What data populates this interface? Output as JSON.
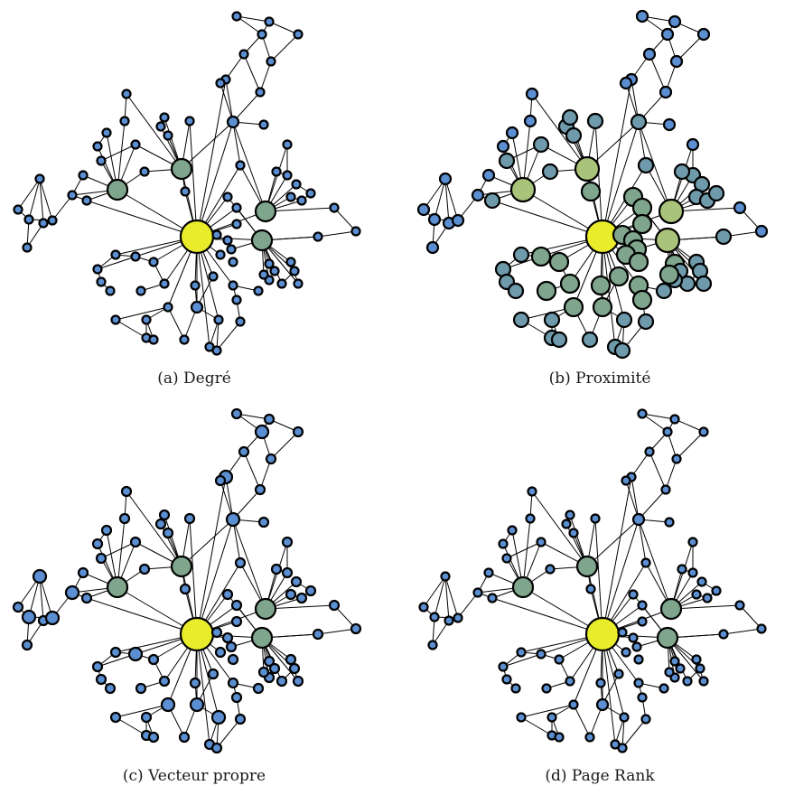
{
  "panels": [
    {
      "id": "a",
      "caption": "(a) Degré"
    },
    {
      "id": "b",
      "caption": "(b) Proximité"
    },
    {
      "id": "c",
      "caption": "(c) Vecteur propre"
    },
    {
      "id": "d",
      "caption": "(d) Page Rank"
    }
  ],
  "colors": {
    "low": "#5b8fd1",
    "mid": "#7fa68c",
    "high": "#e8ec2a",
    "edge": "#000000"
  }
}
